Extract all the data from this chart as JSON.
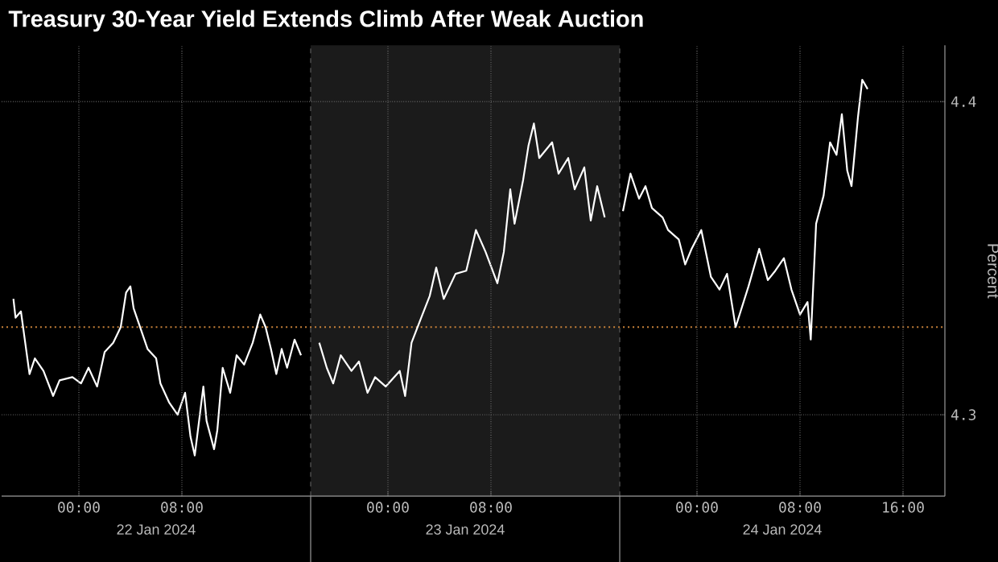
{
  "chart_data": {
    "type": "line",
    "title": "Treasury 30-Year Yield Extends Climb After Weak Auction",
    "ylabel": "Percent",
    "annotations": [
      "22 Jan 2024",
      "23 Jan 2024",
      "24 Jan 2024"
    ],
    "xlim": [
      "2024-01-21T18:00",
      "2024-01-24T19:15"
    ],
    "xticks": [
      {
        "value": "2024-01-22T00:00",
        "label": "00:00"
      },
      {
        "value": "2024-01-22T08:00",
        "label": "08:00"
      },
      {
        "value": "2024-01-23T00:00",
        "label": "00:00"
      },
      {
        "value": "2024-01-23T08:00",
        "label": "08:00"
      },
      {
        "value": "2024-01-24T00:00",
        "label": "00:00"
      },
      {
        "value": "2024-01-24T08:00",
        "label": "08:00"
      },
      {
        "value": "2024-01-24T16:00",
        "label": "16:00"
      }
    ],
    "ylim": [
      4.274,
      4.418
    ],
    "yticks": [
      4.3,
      4.4
    ],
    "grid": true,
    "ref_lines": [
      {
        "axis": "y",
        "value": 4.328,
        "color": "#c8823a",
        "line_style": "dotted"
      },
      {
        "axis": "x",
        "value": "2024-01-22T18:00",
        "color": "#5a5a5a",
        "line_style": "dashed"
      },
      {
        "axis": "x",
        "value": "2024-01-23T18:00",
        "color": "#5a5a5a",
        "line_style": "dashed"
      }
    ],
    "bands": [
      {
        "axis": "x",
        "from": "2024-01-22T18:00",
        "to": "2024-01-23T18:00",
        "color": "#1b1b1b"
      }
    ],
    "x": [
      "2024-01-21T18:55",
      "2024-01-21T19:05",
      "2024-01-21T19:30",
      "2024-01-21T19:50",
      "2024-01-21T20:10",
      "2024-01-21T20:35",
      "2024-01-21T21:15",
      "2024-01-21T22:00",
      "2024-01-21T22:30",
      "2024-01-21T23:30",
      "2024-01-22T00:10",
      "2024-01-22T00:45",
      "2024-01-22T01:25",
      "2024-01-22T02:00",
      "2024-01-22T02:40",
      "2024-01-22T03:15",
      "2024-01-22T03:40",
      "2024-01-22T04:00",
      "2024-01-22T04:15",
      "2024-01-22T04:45",
      "2024-01-22T05:20",
      "2024-01-22T06:00",
      "2024-01-22T06:20",
      "2024-01-22T07:00",
      "2024-01-22T07:40",
      "2024-01-22T08:15",
      "2024-01-22T08:40",
      "2024-01-22T09:00",
      "2024-01-22T09:40",
      "2024-01-22T09:55",
      "2024-01-22T10:30",
      "2024-01-22T10:45",
      "2024-01-22T11:10",
      "2024-01-22T11:45",
      "2024-01-22T12:15",
      "2024-01-22T12:50",
      "2024-01-22T13:30",
      "2024-01-22T14:05",
      "2024-01-22T14:30",
      "2024-01-22T14:55",
      "2024-01-22T15:20",
      "2024-01-22T15:45",
      "2024-01-22T16:10",
      "2024-01-22T16:45",
      "2024-01-22T17:15",
      "2024-01-22T18:00",
      "2024-01-22T18:40",
      "2024-01-22T19:15",
      "2024-01-22T19:45",
      "2024-01-22T20:20",
      "2024-01-22T21:10",
      "2024-01-22T21:45",
      "2024-01-22T22:25",
      "2024-01-22T23:00",
      "2024-01-22T23:50",
      "2024-01-23T00:55",
      "2024-01-23T01:20",
      "2024-01-23T01:50",
      "2024-01-23T02:35",
      "2024-01-23T03:15",
      "2024-01-23T03:45",
      "2024-01-23T04:20",
      "2024-01-23T05:15",
      "2024-01-23T06:05",
      "2024-01-23T06:50",
      "2024-01-23T07:35",
      "2024-01-23T08:30",
      "2024-01-23T09:00",
      "2024-01-23T09:30",
      "2024-01-23T09:50",
      "2024-01-23T10:30",
      "2024-01-23T10:55",
      "2024-01-23T11:20",
      "2024-01-23T11:45",
      "2024-01-23T12:45",
      "2024-01-23T13:15",
      "2024-01-23T14:00",
      "2024-01-23T14:30",
      "2024-01-23T15:15",
      "2024-01-23T15:45",
      "2024-01-23T16:15",
      "2024-01-23T16:50",
      "2024-01-23T17:30",
      "2024-01-23T18:15",
      "2024-01-23T18:50",
      "2024-01-23T19:30",
      "2024-01-23T20:00",
      "2024-01-23T20:30",
      "2024-01-23T21:20",
      "2024-01-23T21:45",
      "2024-01-23T22:35",
      "2024-01-23T23:05",
      "2024-01-23T23:35",
      "2024-01-24T00:20",
      "2024-01-24T01:05",
      "2024-01-24T01:45",
      "2024-01-24T02:20",
      "2024-01-24T03:00",
      "2024-01-24T04:00",
      "2024-01-24T04:50",
      "2024-01-24T05:30",
      "2024-01-24T06:05",
      "2024-01-24T06:45",
      "2024-01-24T07:20",
      "2024-01-24T08:00",
      "2024-01-24T08:35",
      "2024-01-24T08:50",
      "2024-01-24T09:15",
      "2024-01-24T09:50",
      "2024-01-24T10:20",
      "2024-01-24T10:50",
      "2024-01-24T11:15",
      "2024-01-24T11:40",
      "2024-01-24T12:00",
      "2024-01-24T12:30",
      "2024-01-24T12:50",
      "2024-01-24T13:15"
    ],
    "series": [
      {
        "color": "#ffffff",
        "values": [
          4.337,
          4.331,
          4.333,
          4.323,
          4.313,
          4.318,
          4.314,
          4.306,
          4.311,
          4.312,
          4.31,
          4.315,
          4.309,
          4.32,
          4.323,
          4.328,
          4.339,
          4.341,
          4.334,
          4.328,
          4.321,
          4.318,
          4.31,
          4.304,
          4.3,
          4.307,
          4.293,
          4.287,
          4.309,
          4.298,
          4.289,
          4.295,
          4.315,
          4.307,
          4.319,
          4.316,
          4.323,
          4.332,
          4.328,
          4.321,
          4.313,
          4.321,
          4.315,
          4.324,
          4.319,
          null,
          4.323,
          4.315,
          4.31,
          4.319,
          4.314,
          4.317,
          4.307,
          4.312,
          4.309,
          4.314,
          4.306,
          4.323,
          4.331,
          4.338,
          4.347,
          4.337,
          4.345,
          4.346,
          4.359,
          4.352,
          4.342,
          4.352,
          4.372,
          4.361,
          4.375,
          4.386,
          4.393,
          4.382,
          4.387,
          4.377,
          4.382,
          4.372,
          4.379,
          4.362,
          4.373,
          4.363,
          null,
          4.365,
          4.377,
          4.369,
          4.373,
          4.366,
          4.363,
          4.359,
          4.356,
          4.348,
          4.353,
          4.359,
          4.344,
          4.34,
          4.345,
          4.328,
          4.341,
          4.353,
          4.343,
          4.346,
          4.35,
          4.34,
          4.332,
          4.336,
          4.324,
          4.361,
          4.37,
          4.387,
          4.383,
          4.396,
          4.378,
          4.373,
          4.395,
          4.407,
          4.404
        ]
      }
    ]
  }
}
